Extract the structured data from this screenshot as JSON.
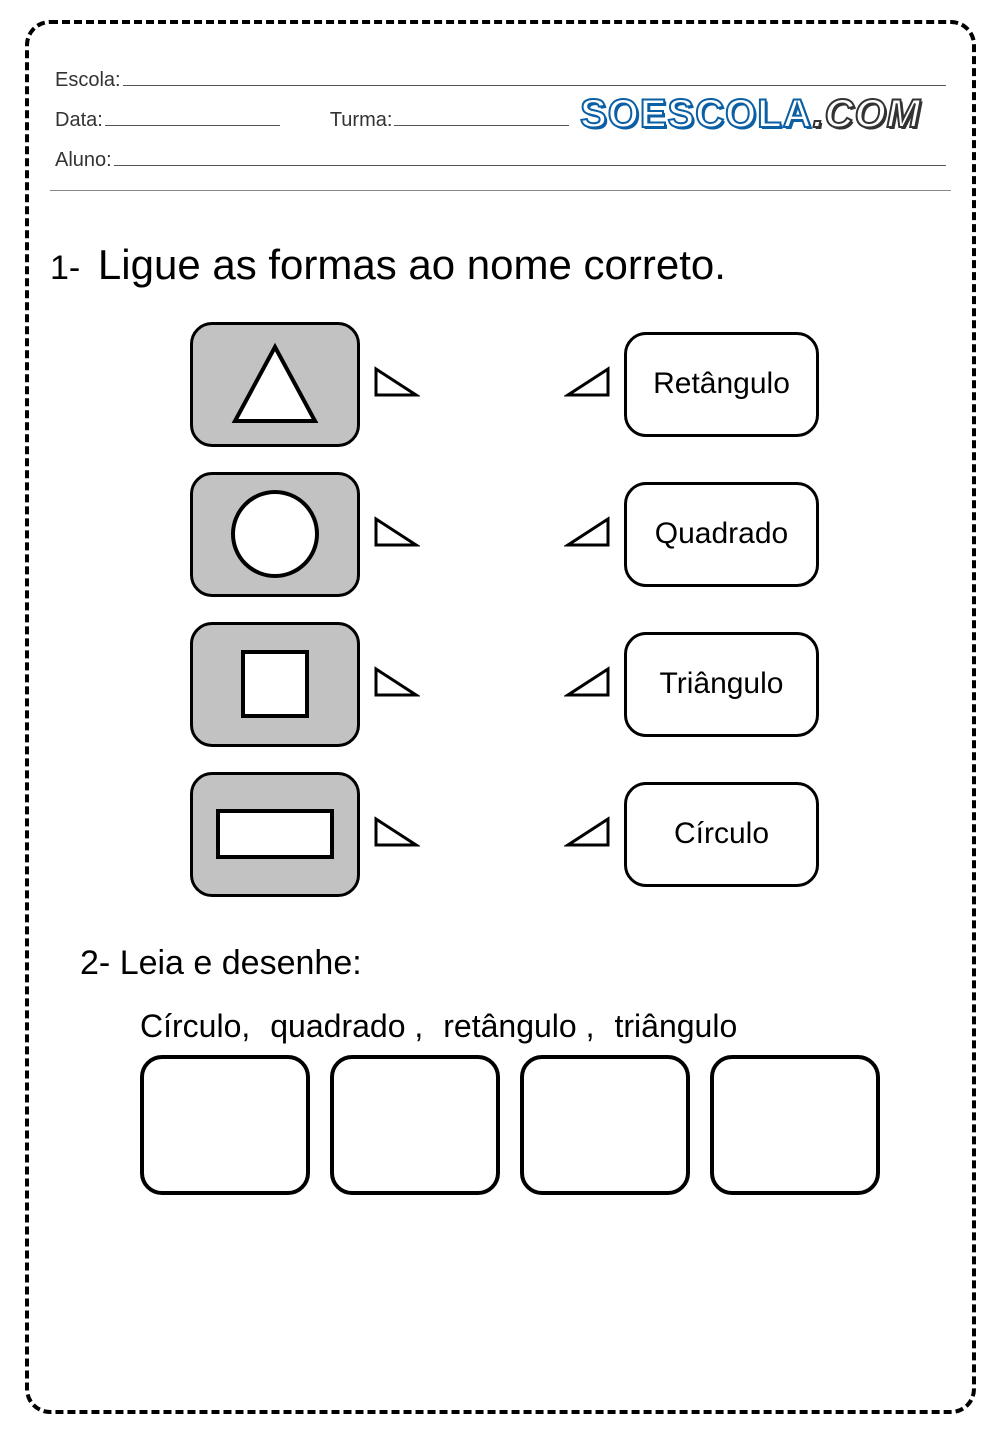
{
  "header": {
    "escola_label": "Escola:",
    "data_label": "Data:",
    "turma_label": "Turma:",
    "aluno_label": "Aluno:"
  },
  "logo": {
    "part1": "SOESCOLA",
    "part2": ".COM"
  },
  "question1": {
    "number": "1-",
    "text": "Ligue as formas ao nome correto.",
    "shapes": [
      {
        "shape": "triangle",
        "label": "Retângulo"
      },
      {
        "shape": "circle",
        "label": "Quadrado"
      },
      {
        "shape": "square",
        "label": "Triângulo"
      },
      {
        "shape": "rectangle",
        "label": "Círculo"
      }
    ]
  },
  "question2": {
    "number": "2-",
    "text": "Leia e desenhe:",
    "words": [
      "Círculo,",
      "quadrado ,",
      "retângulo ,",
      "triângulo"
    ],
    "box_count": 4
  },
  "style": {
    "shape_box_bg": "#c2c2c2",
    "shape_fill": "#ffffff",
    "stroke": "#000000",
    "border_radius": 22,
    "logo_stroke": "#0b5fa5"
  }
}
